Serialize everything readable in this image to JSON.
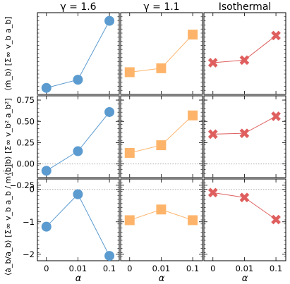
{
  "chart_data": {
    "type": "grid-of-line-charts",
    "x_categories": [
      "0",
      "0.01",
      "0.1"
    ],
    "x_axis_label": "α",
    "columns": [
      {
        "title": "γ = 1.6",
        "color": "#5b9bd0",
        "marker": "circle"
      },
      {
        "title": "γ = 1.1",
        "color": "#fdb46a",
        "marker": "square"
      },
      {
        "title": "Isothermal",
        "color": "#df5f5f",
        "marker": "x"
      }
    ],
    "rows": [
      {
        "ylabel": "⟨ṁ_b⟩ [Σ∞ v_b a_b]",
        "ylim": [
          0,
          2.5
        ],
        "yticks": [],
        "reference_line": null,
        "series": [
          [
            0.2,
            0.45,
            2.25
          ],
          [
            0.68,
            0.8,
            1.83
          ],
          [
            0.97,
            1.05,
            1.8
          ]
        ]
      },
      {
        "ylabel": "⟨L̇_b⟩ [Σ∞ v_b² a_b²]",
        "ylim": [
          -0.16,
          0.8
        ],
        "yticks": [
          "−0.25",
          "0.00",
          "0.25",
          "0.50",
          "0.75"
        ],
        "yticks_values": [
          -0.25,
          0.0,
          0.25,
          0.5,
          0.75
        ],
        "reference_line": 0,
        "series": [
          [
            -0.08,
            0.15,
            0.61
          ],
          [
            0.13,
            0.22,
            0.57
          ],
          [
            0.35,
            0.36,
            0.56
          ]
        ]
      },
      {
        "ylabel": "⟨ȧ_b/a_b⟩ [Σ∞ v_b a_b / m_b]",
        "ylim": [
          -2.2,
          0.32
        ],
        "yticks": [
          "−2",
          "−1",
          "0"
        ],
        "yticks_values": [
          -2,
          -1,
          0
        ],
        "reference_line": 0,
        "series": [
          [
            -1.15,
            -0.15,
            -2.05
          ],
          [
            -0.95,
            -0.62,
            -0.95
          ],
          [
            -0.1,
            -0.25,
            -0.93
          ]
        ]
      }
    ]
  }
}
